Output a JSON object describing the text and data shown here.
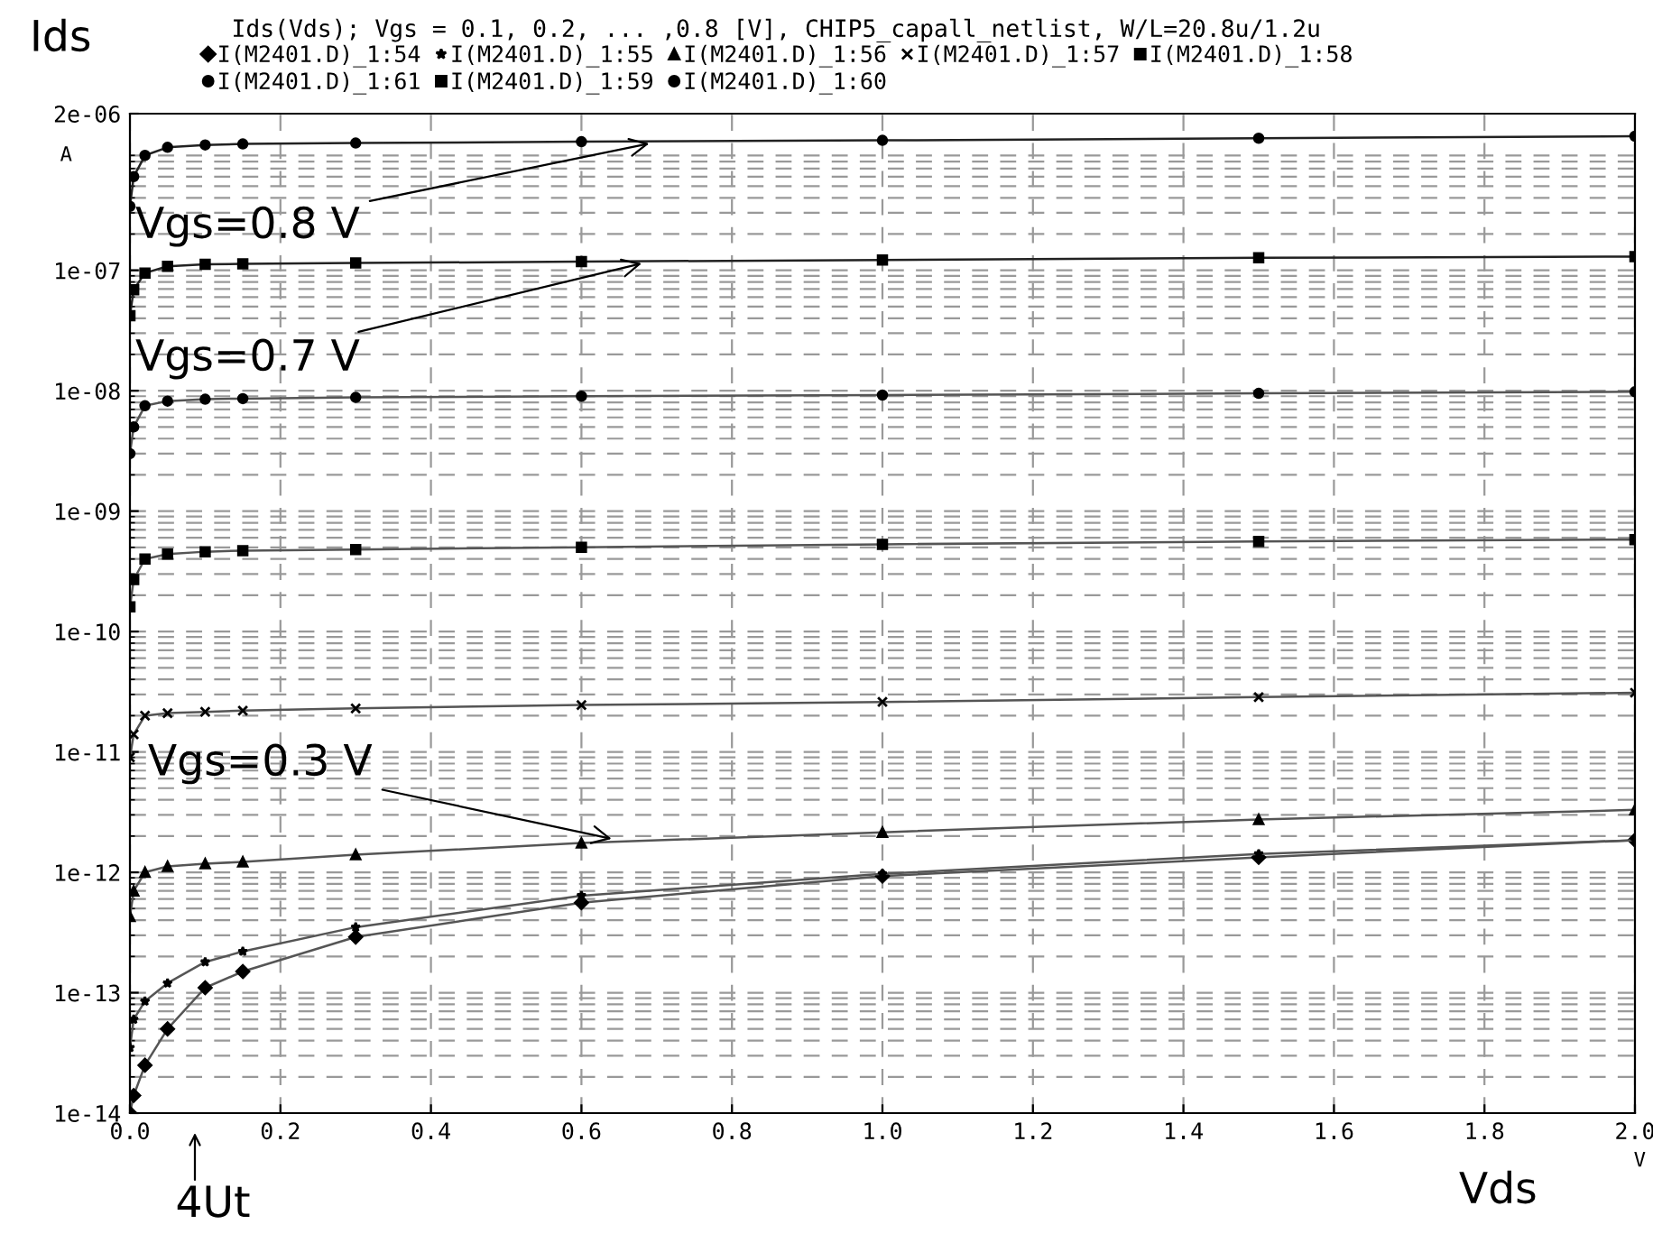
{
  "chart_data": {
    "type": "line",
    "title": "Ids(Vds); Vgs = 0.1, 0.2, ... ,0.8 [V], CHIP5_capall_netlist, W/L=20.8u/1.2u",
    "xlabel": "Vds",
    "ylabel": "Ids",
    "x": [
      0,
      0.005,
      0.02,
      0.05,
      0.1,
      0.15,
      0.3,
      0.6,
      1.0,
      1.5,
      2.0
    ],
    "series": [
      {
        "name": "I(M2401.D)_1:54",
        "color": "#555555",
        "marker": "diamond",
        "values": [
          1e-14,
          1.4e-14,
          2.5e-14,
          5e-14,
          1.1e-13,
          1.5e-13,
          2.9e-13,
          5.6e-13,
          9.3e-13,
          1.33e-12,
          1.85e-12
        ]
      },
      {
        "name": "I(M2401.D)_1:55",
        "color": "#555555",
        "marker": "star",
        "values": [
          3.5e-14,
          6e-14,
          8.5e-14,
          1.2e-13,
          1.8e-13,
          2.2e-13,
          3.5e-13,
          6.4e-13,
          9.7e-13,
          1.42e-12,
          1.85e-12
        ]
      },
      {
        "name": "I(M2401.D)_1:56",
        "color": "#555555",
        "marker": "triangle",
        "values": [
          4.3e-13,
          7e-13,
          1e-12,
          1.12e-12,
          1.18e-12,
          1.22e-12,
          1.4e-12,
          1.75e-12,
          2.15e-12,
          2.75e-12,
          3.3e-12
        ]
      },
      {
        "name": "I(M2401.D)_1:57",
        "color": "#555555",
        "marker": "cross",
        "values": [
          9e-12,
          1.4e-11,
          2e-11,
          2.1e-11,
          2.15e-11,
          2.2e-11,
          2.3e-11,
          2.45e-11,
          2.6e-11,
          2.85e-11,
          3.1e-11
        ]
      },
      {
        "name": "I(M2401.D)_1:58",
        "color": "#555555",
        "marker": "square",
        "values": [
          1.6e-10,
          2.7e-10,
          4e-10,
          4.4e-10,
          4.6e-10,
          4.7e-10,
          4.8e-10,
          5e-10,
          5.3e-10,
          5.6e-10,
          5.8e-10
        ]
      },
      {
        "name": "I(M2401.D)_1:61",
        "color": "#555555",
        "marker": "circle",
        "values": [
          3e-09,
          5e-09,
          7.5e-09,
          8.2e-09,
          8.5e-09,
          8.6e-09,
          8.8e-09,
          9e-09,
          9.2e-09,
          9.5e-09,
          9.8e-09
        ]
      },
      {
        "name": "I(M2401.D)_1:59",
        "color": "#222222",
        "marker": "square",
        "values": [
          4.2e-08,
          6.9e-08,
          9.5e-08,
          1.08e-07,
          1.12e-07,
          1.13e-07,
          1.15e-07,
          1.18e-07,
          1.22e-07,
          1.27e-07,
          1.3e-07
        ]
      },
      {
        "name": "I(M2401.D)_1:60",
        "color": "#222222",
        "marker": "circle",
        "values": [
          3.4e-07,
          6e-07,
          9e-07,
          1.05e-06,
          1.1e-06,
          1.12e-06,
          1.14e-06,
          1.17e-06,
          1.2e-06,
          1.25e-06,
          1.3e-06
        ]
      }
    ],
    "annotations": [
      {
        "text": "Vgs=0.8 V",
        "x": 0.69,
        "y": 1.13e-06
      },
      {
        "text": "Vgs=0.7 V",
        "x": 0.68,
        "y": 1.14e-07
      },
      {
        "text": "Vgs=0.3 V",
        "x": 0.64,
        "y": 1.9e-12
      },
      "4Ut",
      "A",
      "V"
    ],
    "log": "y",
    "xlim": [
      0,
      2.0
    ],
    "ylim": [
      1e-14,
      2e-06
    ],
    "xticks": [
      {
        "value": 0,
        "label": "0.0"
      },
      0.2,
      0.4,
      0.6,
      0.8,
      {
        "value": 1,
        "label": "1.0"
      },
      1.2,
      1.4,
      1.6,
      1.8,
      {
        "value": 2,
        "label": "2.0"
      }
    ],
    "yticks": [
      {
        "value": 1e-14,
        "label": "1e-14"
      },
      {
        "value": 1e-13,
        "label": "1e-13"
      },
      {
        "value": 1e-12,
        "label": "1e-12"
      },
      {
        "value": 1e-11,
        "label": "1e-11"
      },
      {
        "value": 1e-10,
        "label": "1e-10"
      },
      {
        "value": 1e-09,
        "label": "1e-09"
      },
      {
        "value": 1e-08,
        "label": "1e-08"
      },
      {
        "value": 1e-07,
        "label": "1e-07"
      },
      {
        "value": 2e-06,
        "label": "2e-06"
      }
    ],
    "grid": true,
    "legend": "top",
    "line_style": "solid"
  }
}
